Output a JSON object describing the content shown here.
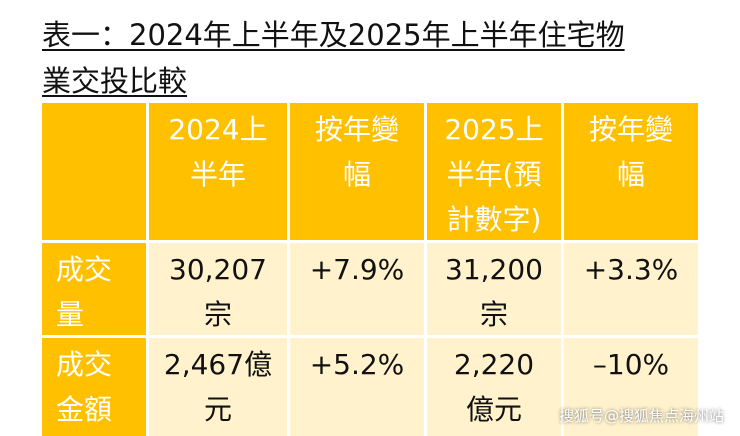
{
  "title": [
    "表一：2024年上半年及2025年上半年住宅物",
    "業交投比較"
  ],
  "table": {
    "header": [
      [
        "2024上",
        "半年"
      ],
      [
        "按年變",
        "幅"
      ],
      [
        "2025上",
        "半年(預",
        "計數字)"
      ],
      [
        "按年變",
        "幅"
      ]
    ],
    "rows": [
      [
        [
          "成交",
          "量"
        ],
        [
          "30,207",
          "宗"
        ],
        [
          "+7.9%"
        ],
        [
          "31,200",
          "宗"
        ],
        [
          "+3.3%"
        ]
      ],
      [
        [
          "成交",
          "金額"
        ],
        [
          "2,467億",
          "元"
        ],
        [
          "+5.2%"
        ],
        [
          "2,220",
          "億元"
        ],
        [
          "–10%"
        ]
      ]
    ]
  },
  "watermark": "搜狐号@搜狐焦点海州站"
}
